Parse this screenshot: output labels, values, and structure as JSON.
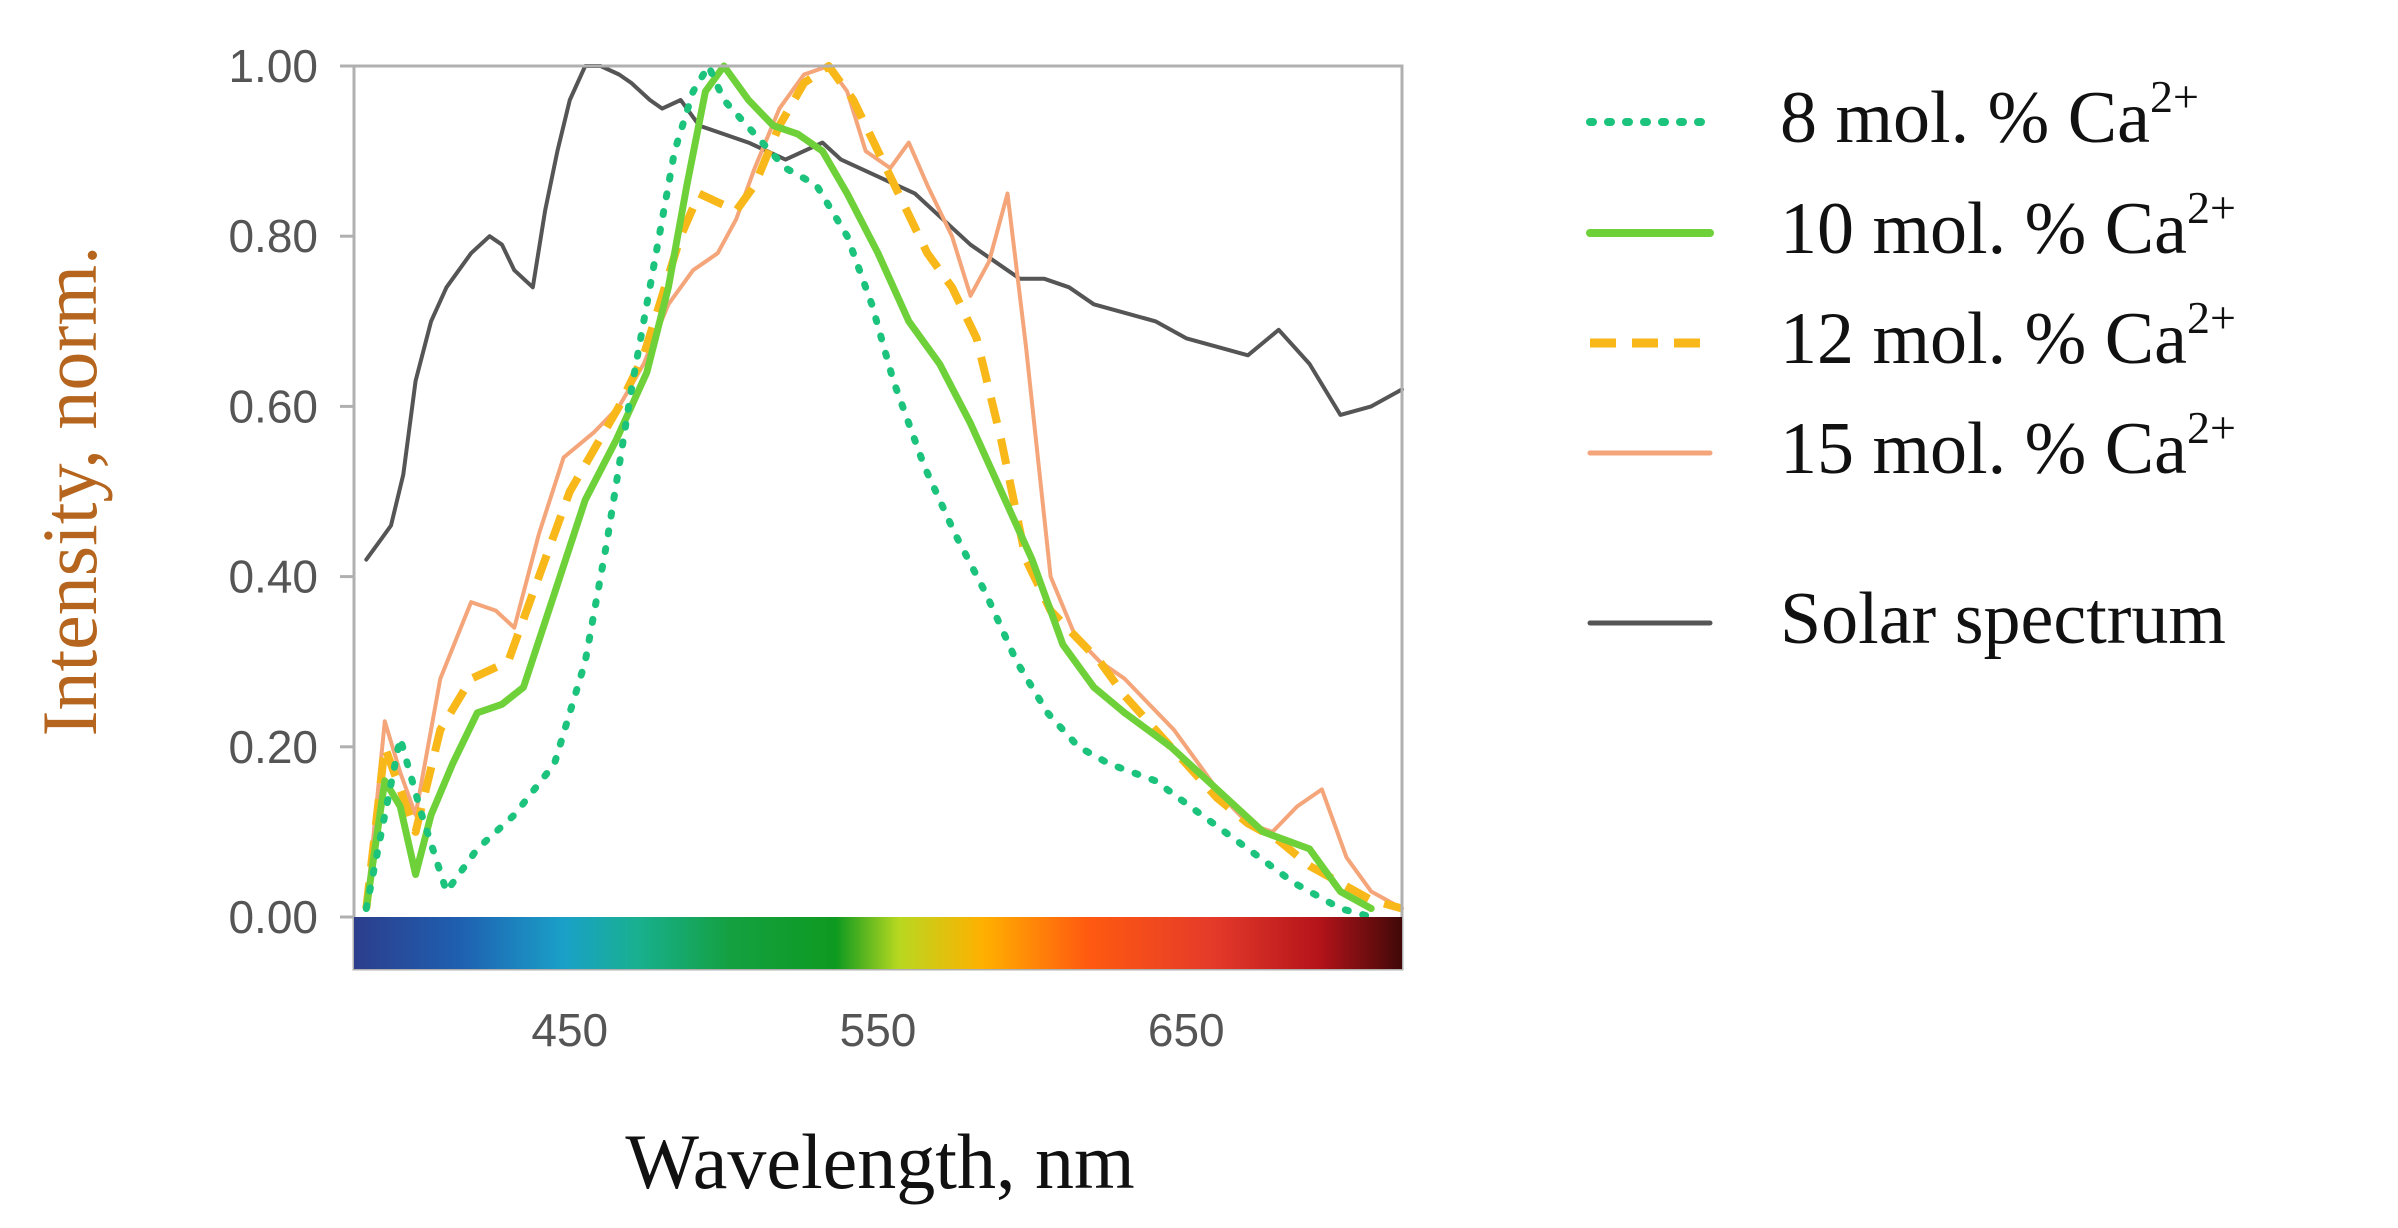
{
  "chart_data": {
    "type": "line",
    "title": "",
    "xlabel": "Wavelength, nm",
    "ylabel": "Intensity, norm.",
    "xlim": [
      380,
      720
    ],
    "ylim": [
      0,
      1
    ],
    "x_ticks": [
      "450",
      "550",
      "650"
    ],
    "y_ticks": [
      "0.00",
      "0.20",
      "0.40",
      "0.60",
      "0.80",
      "1.00"
    ],
    "colors": {
      "ylabel": "#b5651d",
      "xlabel": "#111111",
      "axis_frame": "#b0b0b0",
      "tick_text": "#555555"
    },
    "spectrum_colorbar": [
      {
        "offset": 0.0,
        "color": "#2c3e8c"
      },
      {
        "offset": 0.1,
        "color": "#1f5fb0"
      },
      {
        "offset": 0.2,
        "color": "#1aa0c8"
      },
      {
        "offset": 0.27,
        "color": "#18b090"
      },
      {
        "offset": 0.36,
        "color": "#14a040"
      },
      {
        "offset": 0.46,
        "color": "#0e9a20"
      },
      {
        "offset": 0.52,
        "color": "#b8d820"
      },
      {
        "offset": 0.6,
        "color": "#ffb000"
      },
      {
        "offset": 0.7,
        "color": "#ff5a10"
      },
      {
        "offset": 0.82,
        "color": "#e43a2a"
      },
      {
        "offset": 0.92,
        "color": "#b5141a"
      },
      {
        "offset": 1.0,
        "color": "#400808"
      }
    ],
    "series": [
      {
        "name": "8 mol. % Ca",
        "legend_main": "8 mol. % Ca",
        "legend_sup": "2+",
        "color": "#1cc37c",
        "style": "dotted",
        "x": [
          384,
          390,
          395,
          402,
          410,
          420,
          432,
          445,
          455,
          462,
          470,
          478,
          484,
          490,
          495,
          500,
          510,
          520,
          530,
          540,
          548,
          555,
          565,
          575,
          585,
          595,
          605,
          615,
          625,
          640,
          655,
          670,
          685,
          700,
          710
        ],
        "y": [
          0.01,
          0.12,
          0.21,
          0.12,
          0.03,
          0.08,
          0.12,
          0.18,
          0.3,
          0.44,
          0.62,
          0.78,
          0.9,
          0.97,
          1.0,
          0.96,
          0.92,
          0.88,
          0.86,
          0.8,
          0.72,
          0.63,
          0.53,
          0.45,
          0.38,
          0.3,
          0.24,
          0.2,
          0.18,
          0.16,
          0.12,
          0.08,
          0.04,
          0.01,
          0.0
        ]
      },
      {
        "name": "10 mol. % Ca",
        "legend_main": "10 mol. % Ca",
        "legend_sup": "2+",
        "color": "#6fd13a",
        "style": "solid",
        "x": [
          384,
          390,
          395,
          400,
          405,
          412,
          420,
          428,
          435,
          445,
          455,
          465,
          475,
          482,
          488,
          494,
          500,
          508,
          516,
          524,
          532,
          540,
          550,
          560,
          570,
          580,
          590,
          600,
          610,
          620,
          630,
          645,
          660,
          675,
          690,
          700,
          710
        ],
        "y": [
          0.01,
          0.16,
          0.13,
          0.05,
          0.12,
          0.18,
          0.24,
          0.25,
          0.27,
          0.38,
          0.49,
          0.56,
          0.64,
          0.74,
          0.86,
          0.97,
          1.0,
          0.96,
          0.93,
          0.92,
          0.9,
          0.85,
          0.78,
          0.7,
          0.65,
          0.58,
          0.5,
          0.42,
          0.32,
          0.27,
          0.24,
          0.2,
          0.15,
          0.1,
          0.08,
          0.03,
          0.01
        ]
      },
      {
        "name": "12 mol. % Ca",
        "legend_main": "12 mol. % Ca",
        "legend_sup": "2+",
        "color": "#f8b81a",
        "style": "dashed",
        "x": [
          384,
          390,
          395,
          400,
          408,
          418,
          430,
          440,
          450,
          458,
          466,
          474,
          480,
          486,
          492,
          498,
          504,
          510,
          518,
          526,
          534,
          542,
          550,
          558,
          566,
          574,
          582,
          590,
          598,
          606,
          614,
          622,
          630,
          640,
          650,
          660,
          670,
          680,
          690,
          700,
          710,
          720
        ],
        "y": [
          0.01,
          0.2,
          0.15,
          0.1,
          0.22,
          0.28,
          0.3,
          0.4,
          0.5,
          0.55,
          0.6,
          0.66,
          0.73,
          0.8,
          0.85,
          0.84,
          0.83,
          0.86,
          0.93,
          0.98,
          1.0,
          0.96,
          0.9,
          0.84,
          0.78,
          0.74,
          0.68,
          0.56,
          0.42,
          0.36,
          0.33,
          0.3,
          0.26,
          0.22,
          0.18,
          0.14,
          0.11,
          0.09,
          0.06,
          0.04,
          0.02,
          0.01
        ]
      },
      {
        "name": "15 mol. % Ca",
        "legend_main": "15 mol. % Ca",
        "legend_sup": "2+",
        "color": "#f4a57a",
        "style": "solid-thin",
        "x": [
          384,
          390,
          395,
          400,
          408,
          418,
          426,
          432,
          440,
          448,
          458,
          466,
          474,
          482,
          490,
          498,
          504,
          510,
          518,
          526,
          534,
          540,
          546,
          554,
          560,
          566,
          574,
          580,
          586,
          592,
          598,
          606,
          614,
          622,
          630,
          638,
          646,
          654,
          662,
          670,
          678,
          686,
          694,
          702,
          710,
          720
        ],
        "y": [
          0.01,
          0.23,
          0.17,
          0.12,
          0.28,
          0.37,
          0.36,
          0.34,
          0.45,
          0.54,
          0.57,
          0.6,
          0.65,
          0.72,
          0.76,
          0.78,
          0.82,
          0.88,
          0.95,
          0.99,
          1.0,
          0.97,
          0.9,
          0.88,
          0.91,
          0.86,
          0.8,
          0.73,
          0.77,
          0.85,
          0.67,
          0.4,
          0.33,
          0.3,
          0.28,
          0.25,
          0.22,
          0.18,
          0.14,
          0.11,
          0.1,
          0.13,
          0.15,
          0.07,
          0.03,
          0.01
        ]
      },
      {
        "name": "Solar spectrum",
        "legend_main": "Solar spectrum",
        "legend_sup": "",
        "color": "#555555",
        "style": "solid-thin",
        "x": [
          384,
          388,
          392,
          396,
          400,
          405,
          410,
          418,
          424,
          428,
          432,
          438,
          442,
          446,
          450,
          455,
          460,
          466,
          470,
          476,
          480,
          486,
          492,
          500,
          508,
          514,
          520,
          526,
          532,
          538,
          544,
          550,
          556,
          562,
          568,
          574,
          580,
          588,
          596,
          604,
          612,
          620,
          630,
          640,
          650,
          660,
          670,
          680,
          690,
          700,
          710,
          720
        ],
        "y": [
          0.42,
          0.44,
          0.46,
          0.52,
          0.63,
          0.7,
          0.74,
          0.78,
          0.8,
          0.79,
          0.76,
          0.74,
          0.83,
          0.9,
          0.96,
          1.0,
          1.0,
          0.99,
          0.98,
          0.96,
          0.95,
          0.96,
          0.93,
          0.92,
          0.91,
          0.9,
          0.89,
          0.9,
          0.91,
          0.89,
          0.88,
          0.87,
          0.86,
          0.85,
          0.83,
          0.81,
          0.79,
          0.77,
          0.75,
          0.75,
          0.74,
          0.72,
          0.71,
          0.7,
          0.68,
          0.67,
          0.66,
          0.69,
          0.65,
          0.59,
          0.6,
          0.62
        ]
      }
    ]
  }
}
